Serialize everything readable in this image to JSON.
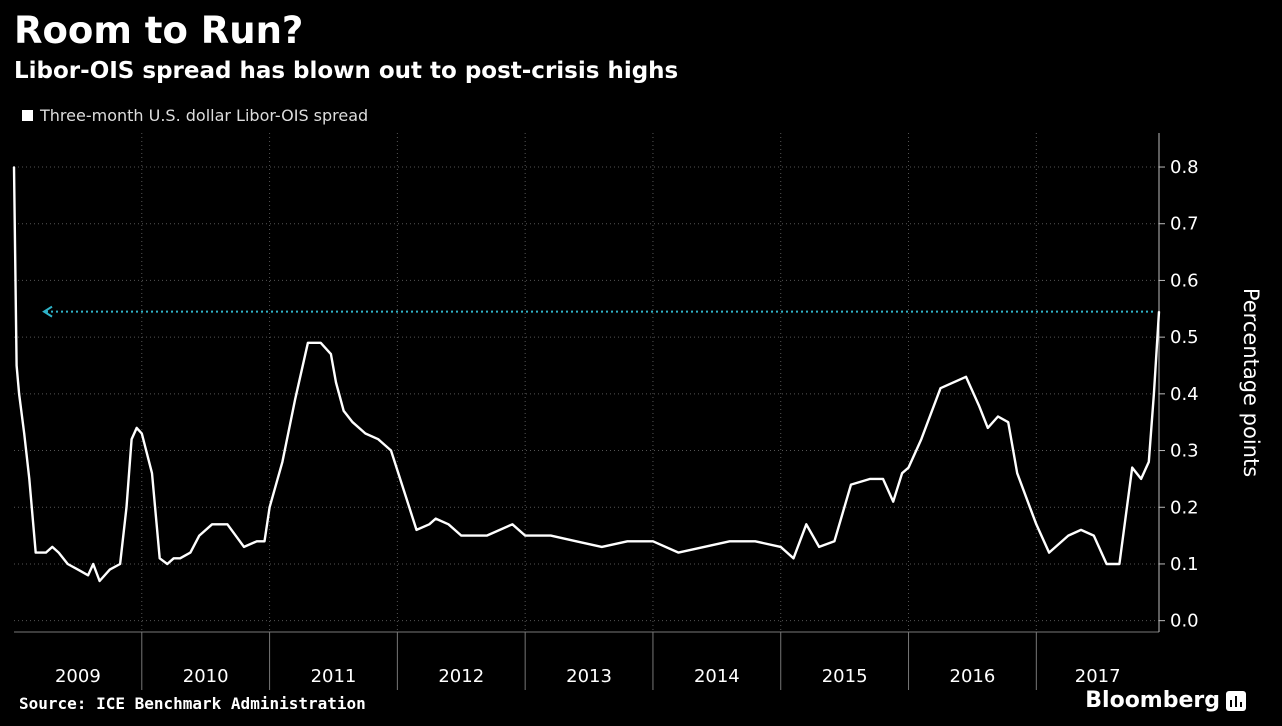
{
  "header": {
    "title": "Room to Run?",
    "subtitle": "Libor-OIS spread has blown out to post-crisis highs"
  },
  "legend": {
    "label": "Three-month U.S. dollar Libor-OIS spread",
    "color": "#ffffff"
  },
  "footer": {
    "source": "Source: ICE Benchmark Administration",
    "brand": "Bloomberg"
  },
  "chart_data": {
    "type": "line",
    "title": "Room to Run?",
    "subtitle": "Libor-OIS spread has blown out to post-crisis highs",
    "xlabel": "",
    "ylabel": "Percentage points",
    "x_unit": "year (decimal)",
    "xlim": [
      2009.0,
      2017.96
    ],
    "ylim": [
      -0.02,
      0.86
    ],
    "yticks": [
      0.8,
      0.7,
      0.6,
      0.5,
      0.4,
      0.3,
      0.2,
      0.1,
      0.0
    ],
    "ytick_labels": [
      "0.8",
      "0.7",
      "0.6",
      "0.5",
      "0.4",
      "0.3",
      "0.2",
      "0.1",
      "0.0"
    ],
    "x_categories": [
      "2009",
      "2010",
      "2011",
      "2012",
      "2013",
      "2014",
      "2015",
      "2016",
      "2017"
    ],
    "grid": true,
    "reference_line": {
      "value": 0.545,
      "color": "#2fb3c8",
      "style": "dotted",
      "arrow": "left"
    },
    "series": [
      {
        "name": "Three-month U.S. dollar Libor-OIS spread",
        "color": "#ffffff",
        "x": [
          2009.0,
          2009.02,
          2009.04,
          2009.08,
          2009.12,
          2009.17,
          2009.25,
          2009.3,
          2009.35,
          2009.42,
          2009.5,
          2009.58,
          2009.62,
          2009.67,
          2009.75,
          2009.83,
          2009.88,
          2009.92,
          2009.96,
          2010.0,
          2010.08,
          2010.14,
          2010.2,
          2010.25,
          2010.3,
          2010.38,
          2010.45,
          2010.55,
          2010.67,
          2010.8,
          2010.9,
          2010.96,
          2011.0,
          2011.1,
          2011.2,
          2011.3,
          2011.4,
          2011.48,
          2011.52,
          2011.58,
          2011.65,
          2011.75,
          2011.85,
          2011.95,
          2012.05,
          2012.15,
          2012.25,
          2012.3,
          2012.4,
          2012.5,
          2012.7,
          2012.9,
          2013.0,
          2013.2,
          2013.4,
          2013.6,
          2013.8,
          2014.0,
          2014.2,
          2014.4,
          2014.6,
          2014.8,
          2015.0,
          2015.1,
          2015.2,
          2015.3,
          2015.42,
          2015.55,
          2015.7,
          2015.8,
          2015.88,
          2015.95,
          2016.0,
          2016.1,
          2016.25,
          2016.45,
          2016.55,
          2016.62,
          2016.7,
          2016.78,
          2016.85,
          2016.95,
          2017.0,
          2017.1,
          2017.25,
          2017.35,
          2017.45,
          2017.55,
          2017.65,
          2017.75,
          2017.82,
          2017.88,
          2017.92,
          2017.96
        ],
        "values": [
          0.8,
          0.45,
          0.4,
          0.33,
          0.25,
          0.12,
          0.12,
          0.13,
          0.12,
          0.1,
          0.09,
          0.08,
          0.1,
          0.07,
          0.09,
          0.1,
          0.2,
          0.32,
          0.34,
          0.33,
          0.26,
          0.11,
          0.1,
          0.11,
          0.11,
          0.12,
          0.15,
          0.17,
          0.17,
          0.13,
          0.14,
          0.14,
          0.2,
          0.28,
          0.39,
          0.49,
          0.49,
          0.47,
          0.42,
          0.37,
          0.35,
          0.33,
          0.32,
          0.3,
          0.23,
          0.16,
          0.17,
          0.18,
          0.17,
          0.15,
          0.15,
          0.17,
          0.15,
          0.15,
          0.14,
          0.13,
          0.14,
          0.14,
          0.12,
          0.13,
          0.14,
          0.14,
          0.13,
          0.11,
          0.17,
          0.13,
          0.14,
          0.24,
          0.25,
          0.25,
          0.21,
          0.26,
          0.27,
          0.32,
          0.41,
          0.43,
          0.38,
          0.34,
          0.36,
          0.35,
          0.26,
          0.2,
          0.17,
          0.12,
          0.15,
          0.16,
          0.15,
          0.1,
          0.1,
          0.27,
          0.25,
          0.28,
          0.4,
          0.545
        ]
      }
    ]
  }
}
